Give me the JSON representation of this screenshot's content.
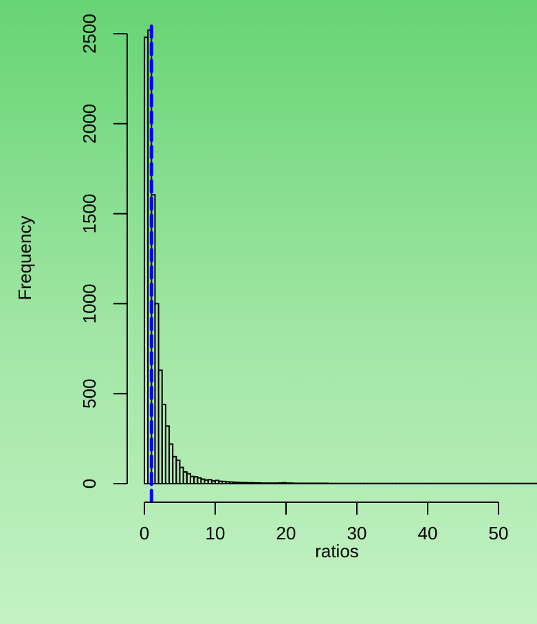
{
  "chart_data": {
    "type": "bar",
    "title": "",
    "xlabel": "ratios",
    "ylabel": "Frequency",
    "bin_width": 0.5,
    "bin_start": 0,
    "values": [
      2480,
      2520,
      1605,
      1000,
      630,
      440,
      320,
      220,
      150,
      130,
      90,
      65,
      55,
      40,
      38,
      32,
      25,
      20,
      22,
      15,
      18,
      13,
      12,
      10,
      9,
      8,
      7,
      6,
      6,
      5,
      5,
      4,
      4,
      3,
      3,
      3,
      3,
      3,
      4,
      5,
      3,
      3,
      2,
      2,
      2,
      2,
      2,
      2,
      2,
      2,
      2,
      2,
      1,
      1,
      1,
      1,
      1,
      1,
      1,
      1,
      1,
      1,
      1,
      1,
      1,
      1,
      1,
      1,
      1,
      1,
      1,
      1,
      1,
      1,
      1,
      1,
      1,
      1,
      1,
      1,
      1,
      1,
      1,
      1,
      1,
      1,
      1,
      1,
      1,
      1,
      1,
      1,
      1,
      1,
      1,
      1,
      1,
      1,
      1,
      1,
      1,
      1,
      1,
      1,
      1,
      1,
      1,
      1,
      1,
      1,
      1,
      1,
      1,
      1,
      1,
      1
    ],
    "xlim": [
      0,
      58
    ],
    "ylim": [
      0,
      2500
    ],
    "x_ticks": [
      0,
      10,
      20,
      30,
      40,
      50
    ],
    "y_ticks": [
      0,
      500,
      1000,
      1500,
      2000,
      2500
    ],
    "reference_line": {
      "x": 1,
      "style": "dashed",
      "color": "#0000ff"
    },
    "bar_fill": "none",
    "bar_stroke": "#000000",
    "grid": false
  },
  "labels": {
    "x_ticks": [
      "0",
      "10",
      "20",
      "30",
      "40",
      "50"
    ],
    "y_ticks": [
      "0",
      "500",
      "1000",
      "1500",
      "2000",
      "2500"
    ],
    "xlabel": "ratios",
    "ylabel": "Frequency"
  }
}
